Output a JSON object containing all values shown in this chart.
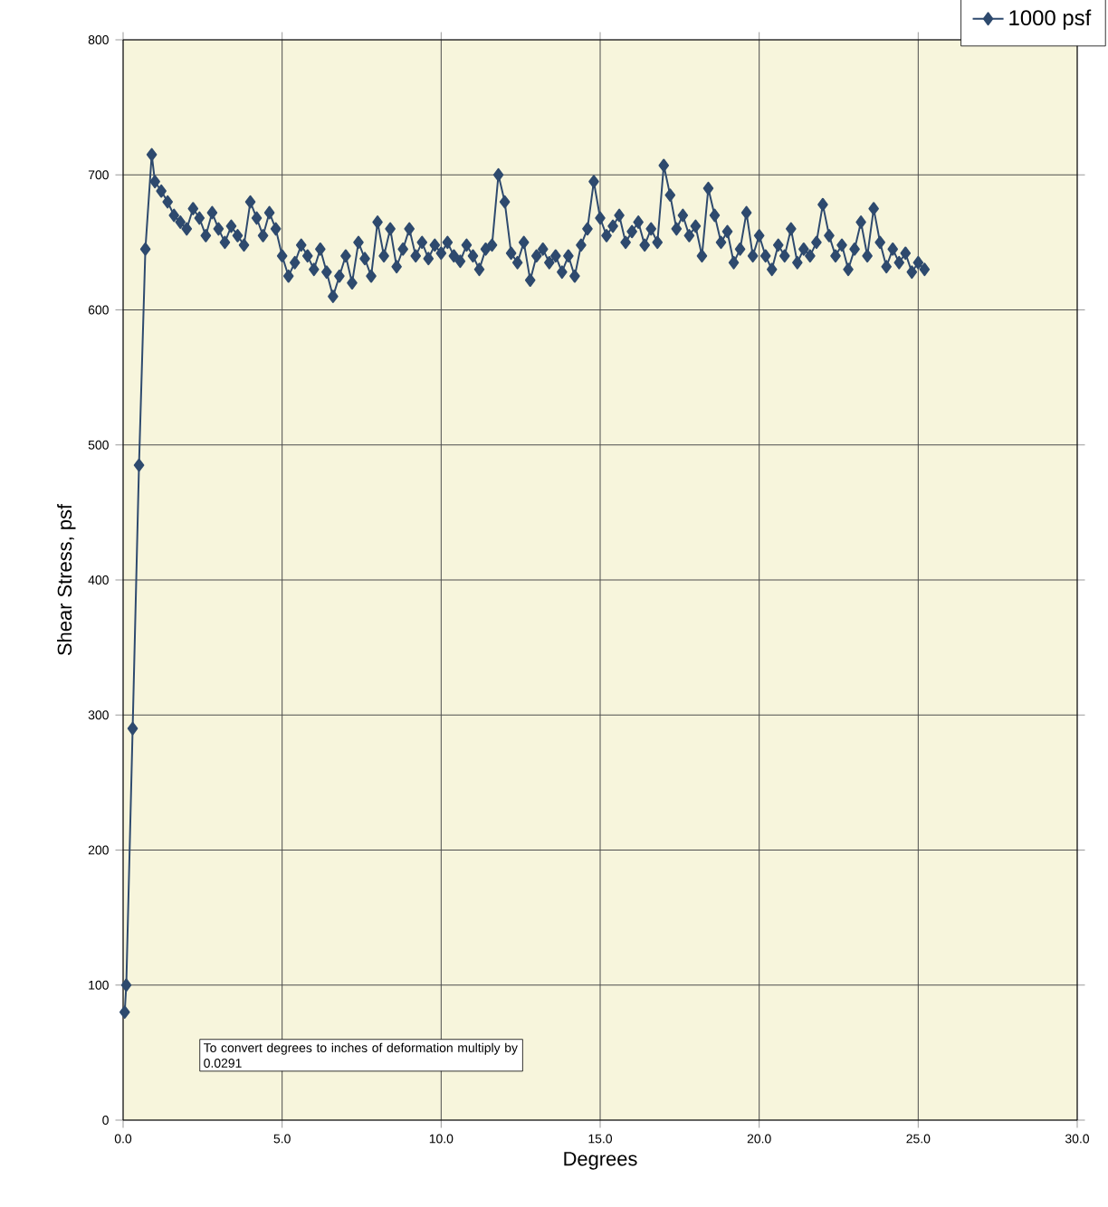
{
  "chart_data": {
    "type": "line",
    "xlabel": "Degrees",
    "ylabel": "Shear Stress, psf",
    "xlim": [
      0,
      30
    ],
    "ylim": [
      0,
      800
    ],
    "xticks": [
      {
        "value": 0,
        "label": "0.0"
      },
      {
        "value": 5,
        "label": "5.0"
      },
      {
        "value": 10,
        "label": "10.0"
      },
      {
        "value": 15,
        "label": "15.0"
      },
      {
        "value": 20,
        "label": "20.0"
      },
      {
        "value": 25,
        "label": "25.0"
      },
      {
        "value": 30,
        "label": "30.0"
      }
    ],
    "yticks": [
      0,
      100,
      200,
      300,
      400,
      500,
      600,
      700,
      800
    ],
    "grid": true,
    "legend": "top right",
    "marker": "diamond",
    "line_style": "solid",
    "annotations": [
      "To convert degrees to inches of deformation multiply by  0.0291"
    ],
    "series": [
      {
        "name": "1000 psf",
        "color": "#2e4a6e",
        "x": [
          0.05,
          0.1,
          0.3,
          0.5,
          0.7,
          0.9,
          1.0,
          1.2,
          1.4,
          1.6,
          1.8,
          2.0,
          2.2,
          2.4,
          2.6,
          2.8,
          3.0,
          3.2,
          3.4,
          3.6,
          3.8,
          4.0,
          4.2,
          4.4,
          4.6,
          4.8,
          5.0,
          5.2,
          5.4,
          5.6,
          5.8,
          6.0,
          6.2,
          6.4,
          6.6,
          6.8,
          7.0,
          7.2,
          7.4,
          7.6,
          7.8,
          8.0,
          8.2,
          8.4,
          8.6,
          8.8,
          9.0,
          9.2,
          9.4,
          9.6,
          9.8,
          10.0,
          10.2,
          10.4,
          10.6,
          10.8,
          11.0,
          11.2,
          11.4,
          11.6,
          11.8,
          12.0,
          12.2,
          12.4,
          12.6,
          12.8,
          13.0,
          13.2,
          13.4,
          13.6,
          13.8,
          14.0,
          14.2,
          14.4,
          14.6,
          14.8,
          15.0,
          15.2,
          15.4,
          15.6,
          15.8,
          16.0,
          16.2,
          16.4,
          16.6,
          16.8,
          17.0,
          17.2,
          17.4,
          17.6,
          17.8,
          18.0,
          18.2,
          18.4,
          18.6,
          18.8,
          19.0,
          19.2,
          19.4,
          19.6,
          19.8,
          20.0,
          20.2,
          20.4,
          20.6,
          20.8,
          21.0,
          21.2,
          21.4,
          21.6,
          21.8,
          22.0,
          22.2,
          22.4,
          22.6,
          22.8,
          23.0,
          23.2,
          23.4,
          23.6,
          23.8,
          24.0,
          24.2,
          24.4,
          24.6,
          24.8,
          25.0,
          25.2
        ],
        "values": [
          80,
          100,
          290,
          485,
          645,
          715,
          695,
          688,
          680,
          670,
          665,
          660,
          675,
          668,
          655,
          672,
          660,
          650,
          662,
          655,
          648,
          680,
          668,
          655,
          672,
          660,
          640,
          625,
          635,
          648,
          640,
          630,
          645,
          628,
          610,
          625,
          640,
          620,
          650,
          638,
          625,
          665,
          640,
          660,
          632,
          645,
          660,
          640,
          650,
          638,
          648,
          642,
          650,
          640,
          636,
          648,
          640,
          630,
          645,
          648,
          700,
          680,
          642,
          635,
          650,
          622,
          640,
          645,
          635,
          640,
          628,
          640,
          625,
          648,
          660,
          695,
          668,
          655,
          662,
          670,
          650,
          658,
          665,
          648,
          660,
          650,
          707,
          685,
          660,
          670,
          655,
          662,
          640,
          690,
          670,
          650,
          658,
          635,
          645,
          672,
          640,
          655,
          640,
          630,
          648,
          640,
          660,
          635,
          645,
          640,
          650,
          678,
          655,
          640,
          648,
          630,
          645,
          665,
          640,
          675,
          650,
          632,
          645,
          635,
          642,
          628,
          635,
          630
        ]
      }
    ]
  }
}
